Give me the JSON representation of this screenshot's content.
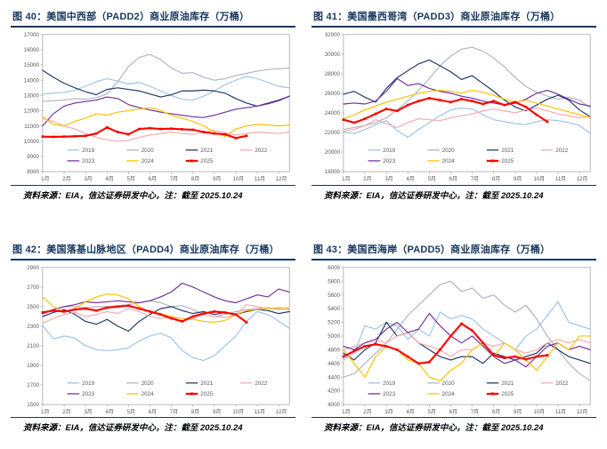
{
  "page": {
    "source_note": "资料来源：EIA，信达证券研发中心，注：截至 2025.10.24"
  },
  "series_colors": {
    "2019": "#9DC3E6",
    "2020": "#AFB3C2",
    "2021": "#1F3864",
    "2022": "#F8A9AD",
    "2023": "#7030A0",
    "2024": "#FFC000",
    "2025": "#FF0000"
  },
  "axis_colors": {
    "border": "#A6A6A6",
    "tick_text": "#595959"
  },
  "chart_data": [
    {
      "type": "line",
      "title": "图 40：美国中西部（PADD2）商业原油库存（万桶）",
      "ylabel": "",
      "xlabel": "",
      "ylim": [
        8000,
        17000
      ],
      "ytick_step": 1000,
      "grid": false,
      "legend_position": "bottom-inside",
      "x_labels": [
        "1月",
        "2月",
        "3月",
        "4月",
        "5月",
        "6月",
        "7月",
        "8月",
        "9月",
        "10月",
        "11月",
        "12月"
      ],
      "series": [
        {
          "name": "2019",
          "x_start": 1,
          "x_step": 0.5,
          "values": [
            13100,
            13150,
            13200,
            13350,
            13600,
            13900,
            14100,
            13950,
            13750,
            13850,
            13600,
            13300,
            13000,
            12750,
            12700,
            12950,
            13300,
            13700,
            14000,
            14250,
            14100,
            13850,
            13600,
            13500
          ]
        },
        {
          "name": "2020",
          "x_start": 1,
          "x_step": 0.5,
          "values": [
            12600,
            12650,
            12700,
            12800,
            12750,
            12850,
            13100,
            13900,
            14900,
            15500,
            15700,
            15350,
            14800,
            14450,
            14500,
            14200,
            14000,
            14100,
            14300,
            14450,
            14600,
            14700,
            14750,
            14800
          ]
        },
        {
          "name": "2021",
          "x_start": 1,
          "x_step": 0.5,
          "values": [
            14650,
            14200,
            13800,
            13500,
            13250,
            13050,
            13400,
            13500,
            13400,
            13300,
            13100,
            12900,
            13050,
            13300,
            13300,
            13350,
            13300,
            13150,
            12800,
            12500,
            12300,
            12500,
            12700,
            12950
          ]
        },
        {
          "name": "2022",
          "x_start": 1,
          "x_step": 0.5,
          "values": [
            11500,
            11300,
            11000,
            10800,
            10500,
            10250,
            10100,
            10000,
            10050,
            10250,
            10400,
            10500,
            10600,
            10500,
            10450,
            10600,
            10700,
            10550,
            10400,
            10500,
            10600,
            10550,
            10500,
            10600
          ]
        },
        {
          "name": "2023",
          "x_start": 1,
          "x_step": 0.5,
          "values": [
            11000,
            11800,
            12300,
            12500,
            12600,
            12700,
            12900,
            12800,
            12400,
            12200,
            12050,
            11900,
            11800,
            11700,
            11600,
            11550,
            11700,
            11900,
            12100,
            12200,
            12300,
            12450,
            12650,
            12950
          ]
        },
        {
          "name": "2024",
          "x_start": 1,
          "x_step": 0.5,
          "values": [
            11600,
            11100,
            11000,
            11300,
            11500,
            11800,
            11700,
            11900,
            12000,
            12100,
            12200,
            12000,
            11700,
            11500,
            11300,
            11000,
            10600,
            10300,
            10800,
            11000,
            11100,
            11050,
            11000,
            11050
          ]
        },
        {
          "name": "2025",
          "x_start": 1,
          "x_step": 0.5,
          "values": [
            10300,
            10280,
            10300,
            10320,
            10350,
            10500,
            10900,
            10600,
            10450,
            10800,
            10850,
            10800,
            10820,
            10780,
            10750,
            10600,
            10500,
            10450,
            10200,
            10350
          ]
        }
      ]
    },
    {
      "type": "line",
      "title": "图 41：美国墨西哥湾（PADD3）商业原油库存（万桶）",
      "ylabel": "",
      "xlabel": "",
      "ylim": [
        18000,
        32000
      ],
      "ytick_step": 2000,
      "grid": false,
      "legend_position": "bottom-inside",
      "x_labels": [
        "1月",
        "2月",
        "3月",
        "4月",
        "5月",
        "6月",
        "7月",
        "8月",
        "9月",
        "10月",
        "11月",
        "12月"
      ],
      "series": [
        {
          "name": "2019",
          "x_start": 1,
          "x_step": 0.5,
          "values": [
            22000,
            21900,
            22300,
            22800,
            23200,
            22200,
            21500,
            22300,
            23000,
            23700,
            24300,
            24500,
            24400,
            23800,
            23300,
            23100,
            22900,
            22800,
            23100,
            23300,
            23200,
            23000,
            22700,
            21900
          ]
        },
        {
          "name": "2020",
          "x_start": 1,
          "x_step": 0.5,
          "values": [
            22300,
            22500,
            22700,
            23000,
            23500,
            24300,
            25200,
            26300,
            27500,
            28800,
            29800,
            30500,
            30700,
            30300,
            29600,
            28700,
            27600,
            26700,
            26100,
            25700,
            25400,
            25600,
            25300,
            24500
          ]
        },
        {
          "name": "2021",
          "x_start": 1,
          "x_step": 0.5,
          "values": [
            25900,
            26200,
            25600,
            25100,
            26500,
            27600,
            28300,
            29000,
            29400,
            28800,
            28200,
            27400,
            27800,
            27000,
            26200,
            25300,
            24600,
            24200,
            24800,
            25400,
            25800,
            25300,
            24300,
            23600
          ]
        },
        {
          "name": "2022",
          "x_start": 1,
          "x_step": 0.5,
          "values": [
            22100,
            22300,
            22700,
            23300,
            22900,
            22500,
            23000,
            23400,
            23300,
            23200,
            23500,
            23700,
            23900,
            24200,
            24400,
            24200,
            24000,
            24300,
            24500,
            24200,
            23900,
            23700,
            23500,
            23600
          ]
        },
        {
          "name": "2023",
          "x_start": 1,
          "x_step": 0.5,
          "values": [
            24900,
            25000,
            24900,
            25200,
            26200,
            27500,
            26800,
            27000,
            26500,
            26200,
            26000,
            25700,
            25500,
            25200,
            25000,
            24800,
            25000,
            25400,
            26000,
            26300,
            25900,
            25400,
            24900,
            24700
          ]
        },
        {
          "name": "2024",
          "x_start": 1,
          "x_step": 0.5,
          "values": [
            23400,
            23800,
            24300,
            24700,
            25100,
            25400,
            25700,
            26000,
            26200,
            26300,
            26200,
            26000,
            26300,
            26100,
            25800,
            25400,
            25100,
            25300,
            25000,
            24700,
            24400,
            24100,
            23800,
            23500
          ]
        },
        {
          "name": "2025",
          "x_start": 1,
          "x_step": 0.5,
          "values": [
            23300,
            23000,
            23400,
            23900,
            24400,
            24200,
            24800,
            25200,
            25500,
            25300,
            25100,
            25400,
            25200,
            24900,
            25200,
            24800,
            25100,
            24600,
            23800,
            23100
          ]
        }
      ]
    },
    {
      "type": "line",
      "title": "图 42：美国落基山脉地区（PADD4）商业原油库存（万桶）",
      "ylabel": "",
      "xlabel": "",
      "ylim": [
        1500,
        2900
      ],
      "ytick_step": 200,
      "grid": false,
      "legend_position": "bottom-inside",
      "x_labels": [
        "1月",
        "2月",
        "3月",
        "4月",
        "5月",
        "6月",
        "7月",
        "8月",
        "9月",
        "10月",
        "11月",
        "12月"
      ],
      "series": [
        {
          "name": "2019",
          "x_start": 1,
          "x_step": 0.5,
          "values": [
            2310,
            2170,
            2200,
            2180,
            2100,
            2060,
            2050,
            2060,
            2080,
            2150,
            2200,
            2230,
            2180,
            2050,
            1980,
            1950,
            2000,
            2100,
            2200,
            2350,
            2450,
            2420,
            2350,
            2280
          ]
        },
        {
          "name": "2020",
          "x_start": 1,
          "x_step": 0.5,
          "values": [
            2420,
            2470,
            2500,
            2500,
            2490,
            2500,
            2500,
            2510,
            2520,
            2540,
            2560,
            2540,
            2500,
            2510,
            2470,
            2420,
            2400,
            2420,
            2450,
            2470,
            2480,
            2490,
            2480,
            2470
          ]
        },
        {
          "name": "2021",
          "x_start": 1,
          "x_step": 0.5,
          "values": [
            2400,
            2440,
            2470,
            2420,
            2350,
            2320,
            2370,
            2300,
            2250,
            2350,
            2420,
            2480,
            2500,
            2460,
            2430,
            2450,
            2420,
            2440,
            2420,
            2450,
            2470,
            2460,
            2430,
            2450
          ]
        },
        {
          "name": "2022",
          "x_start": 1,
          "x_step": 0.5,
          "values": [
            2330,
            2380,
            2420,
            2440,
            2400,
            2420,
            2450,
            2430,
            2480,
            2450,
            2400,
            2380,
            2400,
            2350,
            2380,
            2420,
            2400,
            2390,
            2420,
            2520,
            2500,
            2480,
            2470,
            2480
          ]
        },
        {
          "name": "2023",
          "x_start": 1,
          "x_step": 0.5,
          "values": [
            2430,
            2470,
            2500,
            2520,
            2550,
            2540,
            2550,
            2560,
            2550,
            2540,
            2560,
            2600,
            2650,
            2740,
            2700,
            2650,
            2600,
            2560,
            2540,
            2580,
            2620,
            2600,
            2680,
            2650
          ]
        },
        {
          "name": "2024",
          "x_start": 1,
          "x_step": 0.5,
          "values": [
            2600,
            2500,
            2450,
            2480,
            2550,
            2600,
            2630,
            2620,
            2580,
            2500,
            2450,
            2430,
            2400,
            2380,
            2370,
            2350,
            2340,
            2360,
            2420,
            2460,
            2470,
            2480,
            2490,
            2490
          ]
        },
        {
          "name": "2025",
          "x_start": 1,
          "x_step": 0.5,
          "values": [
            2440,
            2460,
            2450,
            2470,
            2480,
            2460,
            2490,
            2500,
            2510,
            2480,
            2450,
            2420,
            2380,
            2350,
            2400,
            2430,
            2450,
            2440,
            2420,
            2340
          ]
        }
      ]
    },
    {
      "type": "line",
      "title": "图 43：美国西海岸（PADD5）商业原油库存（万桶）",
      "ylabel": "",
      "xlabel": "",
      "ylim": [
        4000,
        6000
      ],
      "ytick_step": 200,
      "grid": false,
      "legend_position": "bottom-inside",
      "x_labels": [
        "1月",
        "2月",
        "3月",
        "4月",
        "5月",
        "6月",
        "7月",
        "8月",
        "9月",
        "10月",
        "11月",
        "12月"
      ],
      "series": [
        {
          "name": "2019",
          "x_start": 1,
          "x_step": 0.5,
          "values": [
            4650,
            4750,
            5150,
            5100,
            5200,
            5150,
            4950,
            5100,
            5000,
            5350,
            5250,
            5300,
            5250,
            5100,
            5000,
            4900,
            4800,
            5000,
            5100,
            5300,
            5500,
            5200,
            5150,
            5100
          ]
        },
        {
          "name": "2020",
          "x_start": 1,
          "x_step": 0.5,
          "values": [
            4400,
            4450,
            4600,
            4750,
            4900,
            5100,
            5300,
            5450,
            5600,
            5750,
            5800,
            5650,
            5700,
            5550,
            5600,
            5450,
            5350,
            5450,
            5250,
            5000,
            4800,
            4600,
            4450,
            4350
          ]
        },
        {
          "name": "2021",
          "x_start": 1,
          "x_step": 0.5,
          "values": [
            4750,
            4650,
            4800,
            4900,
            5200,
            5000,
            5050,
            4900,
            4800,
            4700,
            4650,
            4700,
            4700,
            4600,
            4750,
            4700,
            4650,
            4700,
            4750,
            4900,
            4800,
            4700,
            4650,
            4600
          ]
        },
        {
          "name": "2022",
          "x_start": 1,
          "x_step": 0.5,
          "values": [
            4800,
            4850,
            4900,
            4950,
            4900,
            5000,
            5050,
            4900,
            4850,
            4800,
            4700,
            4800,
            4800,
            4900,
            4850,
            4900,
            4800,
            4750,
            4800,
            4900,
            4950,
            4900,
            4950,
            4900
          ]
        },
        {
          "name": "2023",
          "x_start": 1,
          "x_step": 0.5,
          "values": [
            4850,
            4800,
            4900,
            4950,
            5100,
            5200,
            5050,
            5100,
            5330,
            5150,
            5000,
            4900,
            5000,
            4850,
            4700,
            4600,
            4650,
            4550,
            4700,
            4850,
            4900,
            4800,
            4850,
            4800
          ]
        },
        {
          "name": "2024",
          "x_start": 1,
          "x_step": 0.5,
          "values": [
            4800,
            4600,
            4400,
            4700,
            4850,
            4800,
            4650,
            4600,
            4400,
            4350,
            4500,
            4600,
            4800,
            4900,
            4700,
            4900,
            4800,
            4650,
            4500,
            4700,
            4900,
            4800,
            5000,
            5000
          ]
        },
        {
          "name": "2025",
          "x_start": 1,
          "x_step": 0.5,
          "values": [
            4700,
            4780,
            4850,
            4880,
            4850,
            4800,
            4700,
            4600,
            4620,
            4800,
            5000,
            5180,
            5080,
            4900,
            4720,
            4680,
            4700,
            4660,
            4700,
            4720
          ]
        }
      ]
    }
  ]
}
